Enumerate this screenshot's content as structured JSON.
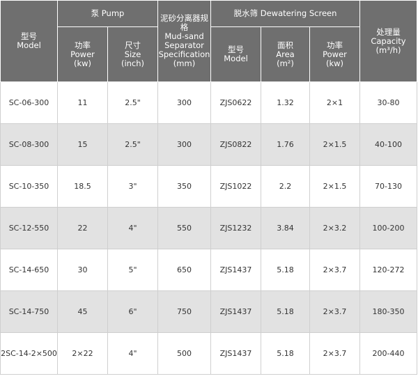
{
  "header": {
    "model": [
      "型号",
      "Model"
    ],
    "pump_group": "泵 Pump",
    "pump_power": [
      "功率",
      "Power",
      "(kw)"
    ],
    "pump_size": [
      "尺寸",
      "Size",
      "(inch)"
    ],
    "separator": [
      "泥砂分离器规格",
      "Mud-sand",
      "Separator",
      "Specification",
      "(mm)"
    ],
    "screen_group": "脱水筛 Dewatering Screen",
    "screen_model": [
      "型号",
      "Model"
    ],
    "screen_area": [
      "面积",
      "Area",
      "(m²)"
    ],
    "screen_power": [
      "功率",
      "Power",
      "(kw)"
    ],
    "capacity": [
      "处理量",
      "Capacity",
      "(m³/h)"
    ]
  },
  "rows": [
    {
      "model": "SC-06-300",
      "power": "11",
      "size": "2.5\"",
      "sep": "300",
      "smodel": "ZJS0622",
      "area": "1.32",
      "spower": "2×1",
      "cap": "30-80"
    },
    {
      "model": "SC-08-300",
      "power": "15",
      "size": "2.5\"",
      "sep": "300",
      "smodel": "ZJS0822",
      "area": "1.76",
      "spower": "2×1.5",
      "cap": "40-100"
    },
    {
      "model": "SC-10-350",
      "power": "18.5",
      "size": "3\"",
      "sep": "350",
      "smodel": "ZJS1022",
      "area": "2.2",
      "spower": "2×1.5",
      "cap": "70-130"
    },
    {
      "model": "SC-12-550",
      "power": "22",
      "size": "4\"",
      "sep": "550",
      "smodel": "ZJS1232",
      "area": "3.84",
      "spower": "2×3.2",
      "cap": "100-200"
    },
    {
      "model": "SC-14-650",
      "power": "30",
      "size": "5\"",
      "sep": "650",
      "smodel": "ZJS1437",
      "area": "5.18",
      "spower": "2×3.7",
      "cap": "120-272"
    },
    {
      "model": "SC-14-750",
      "power": "45",
      "size": "6\"",
      "sep": "750",
      "smodel": "ZJS1437",
      "area": "5.18",
      "spower": "2×3.7",
      "cap": "180-350"
    },
    {
      "model": "2SC-14-2×500",
      "power": "2×22",
      "size": "4\"",
      "sep": "500",
      "smodel": "ZJS1437",
      "area": "5.18",
      "spower": "2×3.7",
      "cap": "200-440"
    }
  ],
  "colors": {
    "header_bg": "#6f6f6f",
    "alt_row_bg": "#e2e2e2",
    "text": "#333333"
  }
}
